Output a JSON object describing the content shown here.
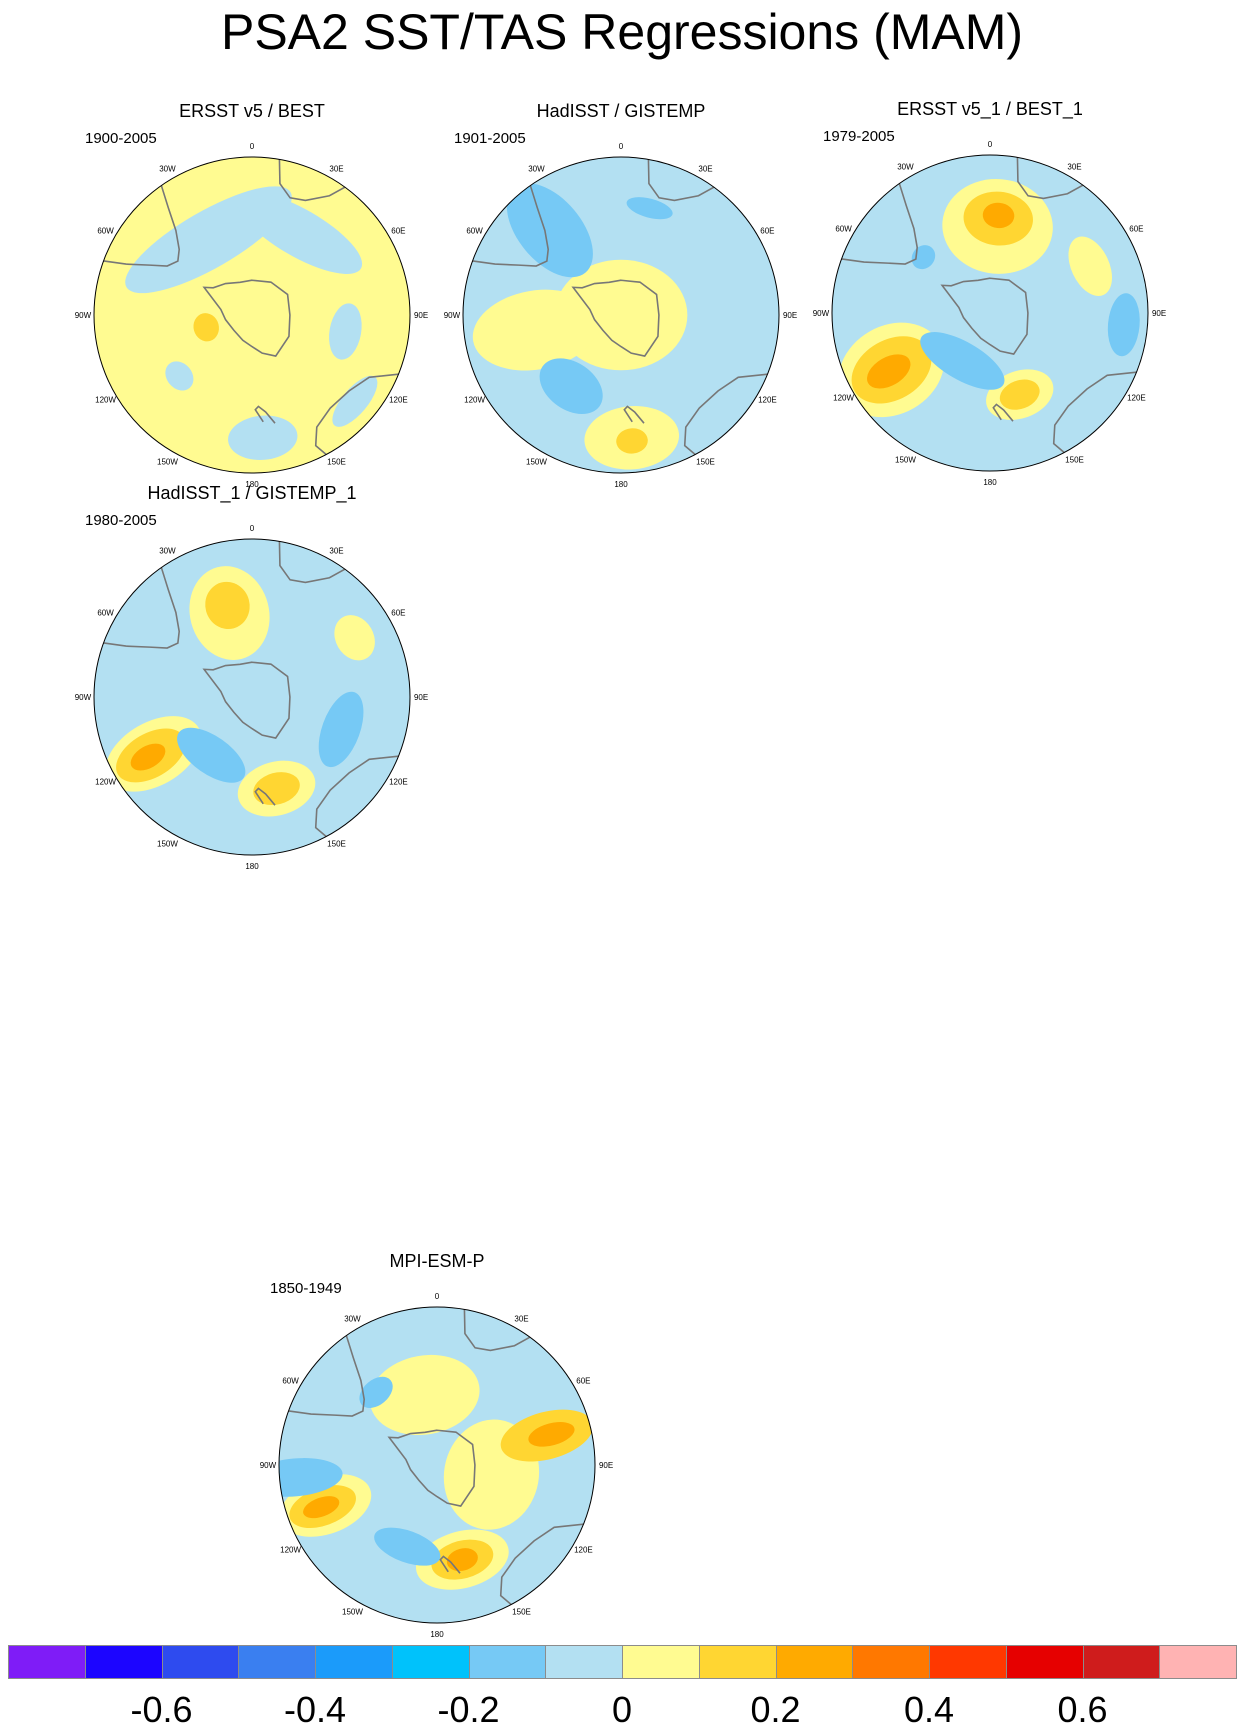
{
  "page": {
    "title": "PSA2 SST/TAS Regressions (MAM)"
  },
  "longitude_labels": [
    "0",
    "30E",
    "60E",
    "90E",
    "120E",
    "150E",
    "180",
    "150W",
    "120W",
    "90W",
    "60W",
    "30W"
  ],
  "colorbar": {
    "colors": [
      "#7f1cf7",
      "#1c05ff",
      "#2e4bef",
      "#3a7ff0",
      "#1b9bfa",
      "#00c2fb",
      "#76c9f5",
      "#b3e0f2",
      "#fffb91",
      "#ffd632",
      "#ffaa00",
      "#ff7800",
      "#ff3800",
      "#e60000",
      "#cf1c1c",
      "#ffb3b3"
    ],
    "labels": [
      "-0.6",
      "-0.4",
      "-0.2",
      "0",
      "0.2",
      "0.4",
      "0.6"
    ]
  },
  "panels": [
    {
      "title": "ERSST v5 / BEST",
      "period": "1900-2005",
      "base": "#fffb91",
      "blobs": [
        {
          "lon": 330,
          "r": 0.55,
          "rx": 0.6,
          "ry": 0.18,
          "color": "#b3e0f2"
        },
        {
          "lon": 30,
          "r": 0.6,
          "rx": 0.45,
          "ry": 0.15,
          "color": "#b3e0f2"
        },
        {
          "lon": 100,
          "r": 0.6,
          "rx": 0.18,
          "ry": 0.1,
          "color": "#b3e0f2"
        },
        {
          "lon": 175,
          "r": 0.78,
          "rx": 0.22,
          "ry": 0.14,
          "color": "#b3e0f2"
        },
        {
          "lon": 130,
          "r": 0.85,
          "rx": 0.2,
          "ry": 0.08,
          "color": "#b3e0f2"
        },
        {
          "lon": 255,
          "r": 0.3,
          "rx": 0.09,
          "ry": 0.08,
          "color": "#ffd632"
        },
        {
          "lon": 230,
          "r": 0.6,
          "rx": 0.1,
          "ry": 0.08,
          "color": "#b3e0f2"
        }
      ]
    },
    {
      "title": "HadISST / GISTEMP",
      "period": "1901-2005",
      "base": "#b3e0f2",
      "blobs": [
        {
          "lon": 0,
          "r": 0.0,
          "rx": 0.42,
          "ry": 0.35,
          "color": "#fffb91"
        },
        {
          "lon": 260,
          "r": 0.55,
          "rx": 0.25,
          "ry": 0.4,
          "color": "#fffb91"
        },
        {
          "lon": 175,
          "r": 0.78,
          "rx": 0.3,
          "ry": 0.2,
          "color": "#fffb91"
        },
        {
          "lon": 320,
          "r": 0.7,
          "rx": 0.2,
          "ry": 0.35,
          "color": "#76c9f5"
        },
        {
          "lon": 215,
          "r": 0.55,
          "rx": 0.22,
          "ry": 0.15,
          "color": "#76c9f5"
        },
        {
          "lon": 15,
          "r": 0.7,
          "rx": 0.15,
          "ry": 0.06,
          "color": "#76c9f5"
        },
        {
          "lon": 175,
          "r": 0.8,
          "rx": 0.1,
          "ry": 0.08,
          "color": "#ffd632"
        }
      ]
    },
    {
      "title": "ERSST v5_1 / BEST_1",
      "period": "1979-2005",
      "base": "#b3e0f2",
      "blobs": [
        {
          "lon": 5,
          "r": 0.55,
          "rx": 0.35,
          "ry": 0.3,
          "color": "#fffb91"
        },
        {
          "lon": 5,
          "r": 0.6,
          "rx": 0.22,
          "ry": 0.17,
          "color": "#ffd632"
        },
        {
          "lon": 5,
          "r": 0.62,
          "rx": 0.1,
          "ry": 0.08,
          "color": "#ffaa00"
        },
        {
          "lon": 240,
          "r": 0.72,
          "rx": 0.28,
          "ry": 0.35,
          "color": "#fffb91"
        },
        {
          "lon": 240,
          "r": 0.72,
          "rx": 0.19,
          "ry": 0.27,
          "color": "#ffd632"
        },
        {
          "lon": 240,
          "r": 0.74,
          "rx": 0.09,
          "ry": 0.15,
          "color": "#ffaa00"
        },
        {
          "lon": 160,
          "r": 0.55,
          "rx": 0.22,
          "ry": 0.15,
          "color": "#fffb91"
        },
        {
          "lon": 160,
          "r": 0.55,
          "rx": 0.13,
          "ry": 0.09,
          "color": "#ffd632"
        },
        {
          "lon": 210,
          "r": 0.35,
          "rx": 0.3,
          "ry": 0.12,
          "color": "#76c9f5"
        },
        {
          "lon": 65,
          "r": 0.7,
          "rx": 0.2,
          "ry": 0.12,
          "color": "#fffb91"
        },
        {
          "lon": 95,
          "r": 0.85,
          "rx": 0.2,
          "ry": 0.1,
          "color": "#76c9f5"
        },
        {
          "lon": 310,
          "r": 0.55,
          "rx": 0.08,
          "ry": 0.07,
          "color": "#76c9f5"
        }
      ]
    },
    {
      "title": "HadISST_1 / GISTEMP_1",
      "period": "1980-2005",
      "base": "#b3e0f2",
      "blobs": [
        {
          "lon": 345,
          "r": 0.55,
          "rx": 0.25,
          "ry": 0.3,
          "color": "#fffb91"
        },
        {
          "lon": 345,
          "r": 0.6,
          "rx": 0.14,
          "ry": 0.15,
          "color": "#ffd632"
        },
        {
          "lon": 240,
          "r": 0.72,
          "rx": 0.2,
          "ry": 0.33,
          "color": "#fffb91"
        },
        {
          "lon": 240,
          "r": 0.74,
          "rx": 0.14,
          "ry": 0.24,
          "color": "#ffd632"
        },
        {
          "lon": 240,
          "r": 0.76,
          "rx": 0.07,
          "ry": 0.12,
          "color": "#ffaa00"
        },
        {
          "lon": 165,
          "r": 0.6,
          "rx": 0.25,
          "ry": 0.17,
          "color": "#fffb91"
        },
        {
          "lon": 165,
          "r": 0.6,
          "rx": 0.15,
          "ry": 0.1,
          "color": "#ffd632"
        },
        {
          "lon": 60,
          "r": 0.75,
          "rx": 0.15,
          "ry": 0.12,
          "color": "#fffb91"
        },
        {
          "lon": 215,
          "r": 0.45,
          "rx": 0.25,
          "ry": 0.12,
          "color": "#76c9f5"
        },
        {
          "lon": 110,
          "r": 0.6,
          "rx": 0.25,
          "ry": 0.12,
          "color": "#76c9f5"
        }
      ]
    },
    {
      "title": "MPI-ESM-P",
      "period": "1850-1949",
      "base": "#b3e0f2",
      "blobs": [
        {
          "lon": 350,
          "r": 0.45,
          "rx": 0.35,
          "ry": 0.25,
          "color": "#fffb91"
        },
        {
          "lon": 100,
          "r": 0.35,
          "rx": 0.35,
          "ry": 0.3,
          "color": "#fffb91"
        },
        {
          "lon": 75,
          "r": 0.72,
          "rx": 0.15,
          "ry": 0.3,
          "color": "#ffd632"
        },
        {
          "lon": 75,
          "r": 0.75,
          "rx": 0.07,
          "ry": 0.15,
          "color": "#ffaa00"
        },
        {
          "lon": 250,
          "r": 0.75,
          "rx": 0.18,
          "ry": 0.3,
          "color": "#fffb91"
        },
        {
          "lon": 250,
          "r": 0.77,
          "rx": 0.12,
          "ry": 0.22,
          "color": "#ffd632"
        },
        {
          "lon": 250,
          "r": 0.78,
          "rx": 0.06,
          "ry": 0.12,
          "color": "#ffaa00"
        },
        {
          "lon": 165,
          "r": 0.62,
          "rx": 0.3,
          "ry": 0.18,
          "color": "#fffb91"
        },
        {
          "lon": 165,
          "r": 0.62,
          "rx": 0.2,
          "ry": 0.12,
          "color": "#ffd632"
        },
        {
          "lon": 165,
          "r": 0.62,
          "rx": 0.1,
          "ry": 0.07,
          "color": "#ffaa00"
        },
        {
          "lon": 265,
          "r": 0.9,
          "rx": 0.12,
          "ry": 0.3,
          "color": "#76c9f5"
        },
        {
          "lon": 200,
          "r": 0.55,
          "rx": 0.22,
          "ry": 0.1,
          "color": "#76c9f5"
        },
        {
          "lon": 320,
          "r": 0.6,
          "rx": 0.12,
          "ry": 0.08,
          "color": "#76c9f5"
        }
      ]
    }
  ]
}
